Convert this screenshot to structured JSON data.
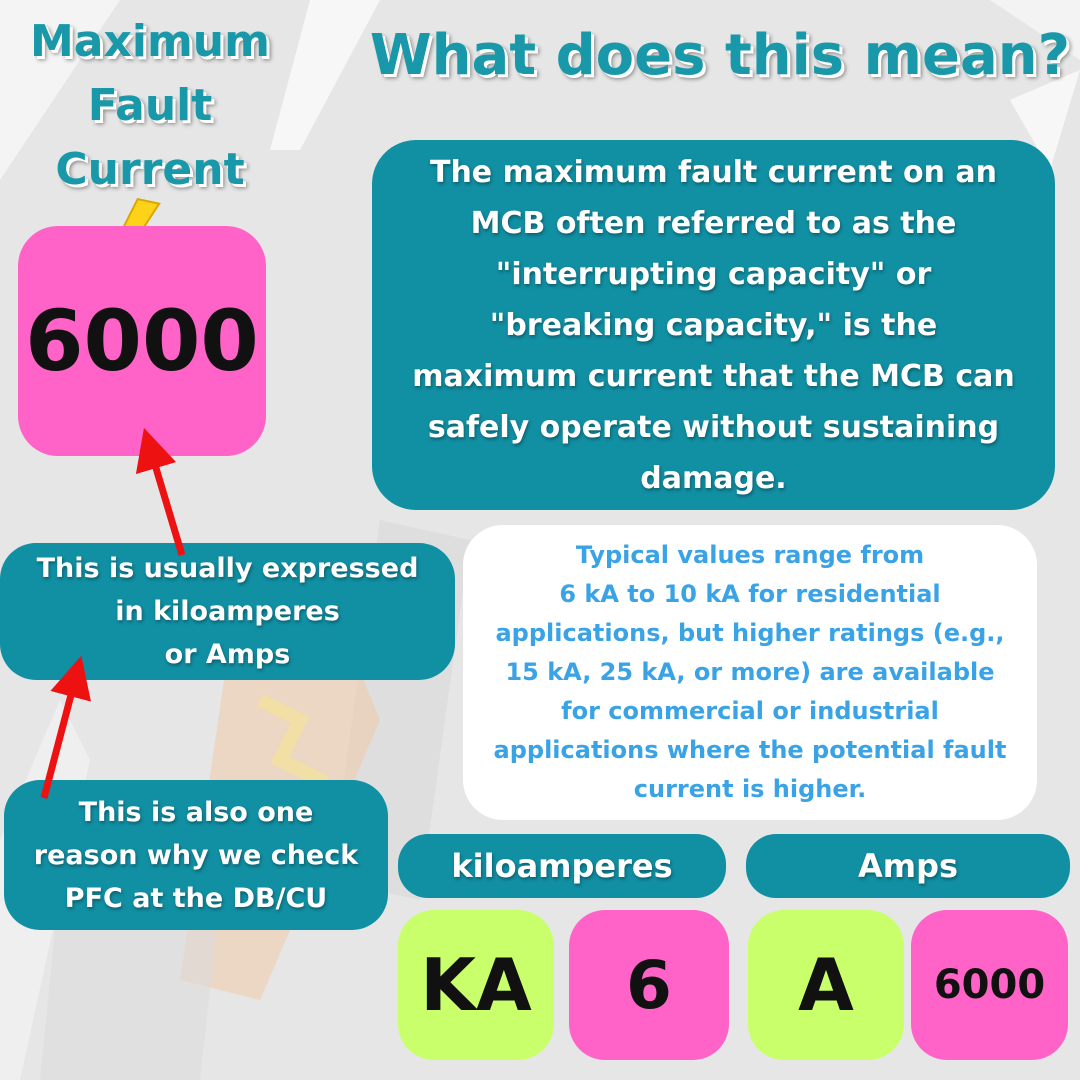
{
  "colors": {
    "teal": "#118fa3",
    "title_teal": "#1898a8",
    "pink": "#ff63c8",
    "lime": "#c9ff6a",
    "light_blue_text": "#3aa3e6",
    "arrow_red": "#ee1111",
    "bolt_yellow": "#ffd21a"
  },
  "left": {
    "title_lines": [
      "Maximum",
      "Fault",
      "Current"
    ],
    "icon": "lightning-bolt-icon",
    "value": "6000",
    "note1_lines": [
      "This is usually expressed",
      "in kiloamperes",
      "or Amps"
    ],
    "note2_lines": [
      "This is also one",
      "reason why we check",
      "PFC at the DB/CU"
    ]
  },
  "main": {
    "title": "What does this mean?",
    "definition_lines": [
      "The maximum fault current on an",
      "MCB often referred to as the",
      "\"interrupting capacity\" or",
      "\"breaking capacity,\" is the",
      "maximum current that the MCB can",
      "safely operate without sustaining",
      "damage."
    ],
    "typical_lines": [
      "Typical values range from",
      "6 kA to 10 kA for residential",
      "applications, but higher ratings (e.g.,",
      "15 kA, 25 kA, or more) are available",
      "for commercial or industrial",
      "applications where the potential fault",
      "current is higher."
    ]
  },
  "units": {
    "kiloamperes_label": "kiloamperes",
    "kiloamperes_symbol": "KA",
    "kiloamperes_value": "6",
    "amps_label": "Amps",
    "amps_symbol": "A",
    "amps_value": "6000"
  }
}
